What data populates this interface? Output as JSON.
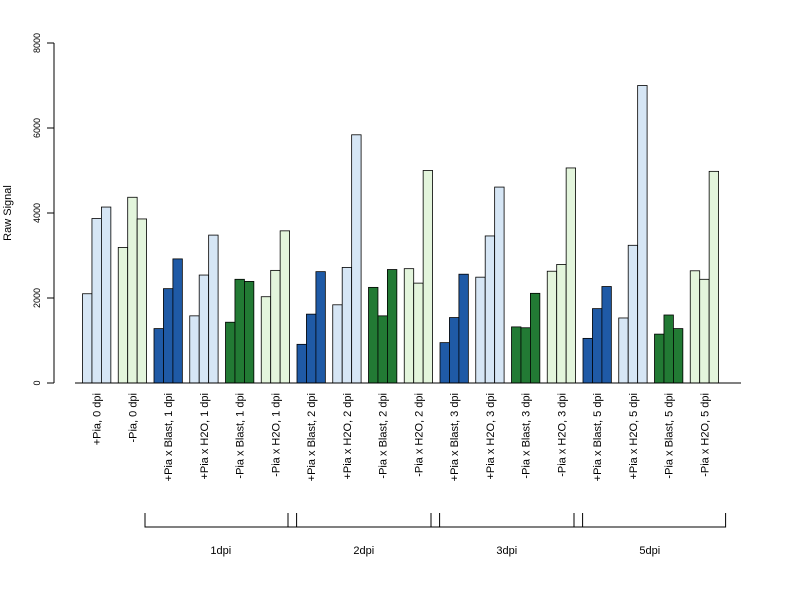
{
  "chart_data": {
    "type": "bar",
    "ylabel": "Raw Signal",
    "ylim": [
      0,
      8000
    ],
    "yticks": [
      0,
      2000,
      4000,
      6000,
      8000
    ],
    "grid": false,
    "legend": "none",
    "categories": [
      "+Pia, 0 dpi",
      "-Pia, 0 dpi",
      "+Pia x Blast, 1 dpi",
      "+Pia x H2O, 1 dpi",
      "-Pia x Blast, 1 dpi",
      "-Pia x H2O, 1 dpi",
      "+Pia x Blast, 2 dpi",
      "+Pia x H2O, 2 dpi",
      "-Pia x Blast, 2 dpi",
      "-Pia x H2O, 2 dpi",
      "+Pia x Blast, 3 dpi",
      "+Pia x H2O, 3 dpi",
      "-Pia x Blast, 3 dpi",
      "-Pia x H2O, 3 dpi",
      "+Pia x Blast, 5 dpi",
      "+Pia x H2O, 5 dpi",
      "-Pia x Blast, 5 dpi",
      "-Pia x H2O, 5 dpi"
    ],
    "values": [
      [
        2100,
        3870,
        4140
      ],
      [
        3190,
        4370,
        3860
      ],
      [
        1280,
        2220,
        2920
      ],
      [
        1580,
        2540,
        3480
      ],
      [
        1430,
        2440,
        2390
      ],
      [
        2030,
        2650,
        3580
      ],
      [
        910,
        1620,
        2620
      ],
      [
        1840,
        2720,
        5840
      ],
      [
        2250,
        1580,
        2670
      ],
      [
        2690,
        2350,
        5000
      ],
      [
        950,
        1540,
        2560
      ],
      [
        2490,
        3460,
        4610
      ],
      [
        1320,
        1300,
        2110
      ],
      [
        2630,
        2790,
        5060
      ],
      [
        1050,
        1750,
        2270
      ],
      [
        1530,
        3240,
        7000
      ],
      [
        1150,
        1600,
        1280
      ],
      [
        2640,
        2440,
        4980
      ]
    ],
    "colors": {
      "plus_pia_blast": "#1f5aa6",
      "plus_pia_h2o": "#d6e6f5",
      "minus_pia_blast": "#227a34",
      "minus_pia_h2o": "#e3f5dc"
    },
    "group_fills": [
      "plus_pia_h2o",
      "minus_pia_h2o",
      "plus_pia_blast",
      "plus_pia_h2o",
      "minus_pia_blast",
      "minus_pia_h2o",
      "plus_pia_blast",
      "plus_pia_h2o",
      "minus_pia_blast",
      "minus_pia_h2o",
      "plus_pia_blast",
      "plus_pia_h2o",
      "minus_pia_blast",
      "minus_pia_h2o",
      "plus_pia_blast",
      "plus_pia_h2o",
      "minus_pia_blast",
      "minus_pia_h2o"
    ],
    "brackets": [
      {
        "label": "1dpi",
        "from_group": 2,
        "to_group": 5
      },
      {
        "label": "2dpi",
        "from_group": 6,
        "to_group": 9
      },
      {
        "label": "3dpi",
        "from_group": 10,
        "to_group": 13
      },
      {
        "label": "5dpi",
        "from_group": 14,
        "to_group": 17
      }
    ]
  }
}
